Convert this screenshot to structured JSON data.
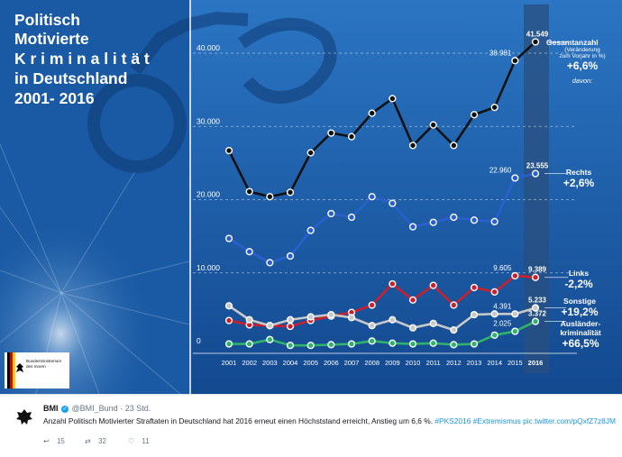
{
  "graphic": {
    "title_lines": [
      "Politisch",
      "Motivierte",
      "K r i m i n a l i t ä t",
      "in Deutschland",
      "2001- 2016"
    ],
    "logo_text": [
      "Bundesministerium",
      "des Innern"
    ],
    "colors": {
      "background": "#1d5fa8",
      "panel": "#2a6fb6",
      "total": "#111111",
      "rechts": "#2a5fd0",
      "links": "#cc1f2d",
      "sonstige": "#c8c8c8",
      "auslaender": "#2fb36a",
      "highlight": "#2a4f7f"
    },
    "annotations": {
      "gesamt_label": "Gesamtanzahl",
      "gesamt_note_1": "(Veränderung",
      "gesamt_note_2": "zum Vorjahr in %)",
      "gesamt_pct": "+6,6%",
      "davon": "davon:",
      "rechts_label": "Rechts",
      "rechts_pct": "+2,6%",
      "links_label": "Links",
      "links_pct": "-2,2%",
      "sonstige_label": "Sonstige",
      "sonstige_pct": "+19,2%",
      "auslaender_label_1": "Ausländer-",
      "auslaender_label_2": "kriminalität",
      "auslaender_pct": "+66,5%"
    }
  },
  "chart_data": {
    "type": "line",
    "x": [
      "2001",
      "2002",
      "2003",
      "2004",
      "2005",
      "2006",
      "2007",
      "2008",
      "2009",
      "2010",
      "2011",
      "2012",
      "2013",
      "2014",
      "2015",
      "2016"
    ],
    "highlight_x": "2016",
    "ylim": [
      0,
      45000
    ],
    "yticks": [
      0,
      10000,
      20000,
      30000,
      40000
    ],
    "ytick_labels": [
      "0",
      "10.000",
      "20.000",
      "30.000",
      "40.000"
    ],
    "grid": true,
    "series": [
      {
        "name": "Gesamtanzahl",
        "key": "total",
        "values": [
          26700,
          21100,
          20400,
          21000,
          26400,
          29100,
          28600,
          31800,
          33800,
          27400,
          30200,
          27400,
          31600,
          32600,
          38981,
          41549
        ]
      },
      {
        "name": "Rechts",
        "key": "rechts",
        "values": [
          14700,
          12900,
          11400,
          12300,
          15800,
          18100,
          17600,
          20400,
          19500,
          16300,
          16900,
          17600,
          17200,
          17000,
          22960,
          23555
        ]
      },
      {
        "name": "Links",
        "key": "links",
        "values": [
          3500,
          2900,
          2800,
          2700,
          3500,
          4100,
          4600,
          5600,
          8500,
          6300,
          8300,
          5600,
          8000,
          7400,
          9605,
          9389
        ]
      },
      {
        "name": "Sonstige",
        "key": "sonstige",
        "values": [
          5500,
          3600,
          2800,
          3600,
          4000,
          4300,
          3900,
          2800,
          3600,
          2500,
          3100,
          2200,
          4300,
          4400,
          4391,
          5233
        ]
      },
      {
        "name": "Ausländerkriminalität",
        "key": "auslaender",
        "values": [
          300,
          300,
          900,
          100,
          100,
          200,
          300,
          700,
          400,
          300,
          400,
          200,
          300,
          1500,
          2025,
          3372
        ]
      }
    ],
    "data_labels": [
      {
        "series": "total",
        "x": "2015",
        "text": "38.981",
        "bold": false
      },
      {
        "series": "total",
        "x": "2016",
        "text": "41.549",
        "bold": true
      },
      {
        "series": "rechts",
        "x": "2015",
        "text": "22.960",
        "bold": false
      },
      {
        "series": "rechts",
        "x": "2016",
        "text": "23.555",
        "bold": true
      },
      {
        "series": "links",
        "x": "2015",
        "text": "9.605",
        "bold": false
      },
      {
        "series": "links",
        "x": "2016",
        "text": "9.389",
        "bold": true
      },
      {
        "series": "sonstige",
        "x": "2015",
        "text": "4.391",
        "bold": false
      },
      {
        "series": "sonstige",
        "x": "2016",
        "text": "5.233",
        "bold": true
      },
      {
        "series": "auslaender",
        "x": "2015",
        "text": "2.025",
        "bold": false
      },
      {
        "series": "auslaender",
        "x": "2016",
        "text": "3.372",
        "bold": true
      }
    ]
  },
  "tweet": {
    "author_name": "BMI",
    "handle": "@BMI_Bund",
    "separator": "·",
    "time": "23 Std.",
    "text": "Anzahl Politisch Motivierter Straftaten in Deutschland hat 2016 erneut einen Höchststand erreicht, Anstieg um 6,6 %.",
    "hashtags": "#PKS2016 #Extremismus",
    "link": "pic.twitter.com/pQxfZ7z8JM",
    "reply_count": "15",
    "retweet_count": "32",
    "like_count": "11",
    "icons": {
      "reply": "reply-icon",
      "retweet": "retweet-icon",
      "like": "heart-icon",
      "verified": "verified-icon",
      "avatar": "eagle-logo"
    }
  }
}
